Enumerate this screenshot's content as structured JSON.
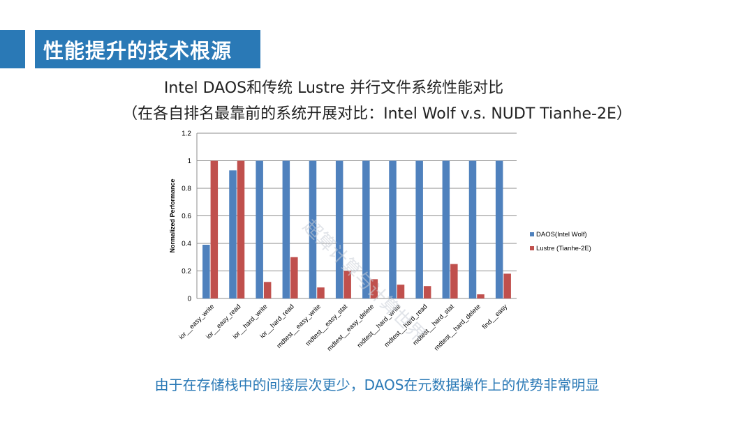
{
  "slide": {
    "title": "性能提升的技术根源",
    "heading_line1": "Intel DAOS和传统 Lustre 并行文件系统性能对比",
    "heading_line2": "（在各自排名最靠前的系统开展对比：Intel Wolf v.s. NUDT Tianhe-2E）",
    "conclusion": "由于在存储栈中的间接层次更少，DAOS在元数据操作上的优势非常明显",
    "watermark": "超算计算与计算世界",
    "colors": {
      "accent": "#2a79b6",
      "conclusion_text": "#2a79b6"
    }
  },
  "chart_data": {
    "type": "bar",
    "categories": [
      "ior__easy_write",
      "ior__easy_read",
      "ior__hard_write",
      "ior__hard_read",
      "mdtest__easy_write",
      "mdtest__easy_stat",
      "mdtest__easy_delete",
      "mdtest__hard_write",
      "mdtest__hard_read",
      "mdtest__hard_stat",
      "mdtest__hard_delete",
      "find__easy"
    ],
    "series": [
      {
        "name": "DAOS(Intel Wolf)",
        "color": "#4f81bd",
        "values": [
          0.39,
          0.93,
          1,
          1,
          1,
          1,
          1,
          1,
          1,
          1,
          1,
          1
        ]
      },
      {
        "name": "Lustre (Tianhe-2E)",
        "color": "#c0504d",
        "values": [
          1,
          1,
          0.12,
          0.3,
          0.08,
          0.2,
          0.14,
          0.1,
          0.09,
          0.25,
          0.03,
          0.18
        ]
      }
    ],
    "title": "",
    "xlabel": "",
    "ylabel": "Normalized Performance",
    "ylim": [
      0,
      1.2
    ],
    "yticks": [
      "0",
      "0.2",
      "0.4",
      "0.6",
      "0.8",
      "1",
      "1.2"
    ],
    "grid": true,
    "legend_position": "right"
  }
}
